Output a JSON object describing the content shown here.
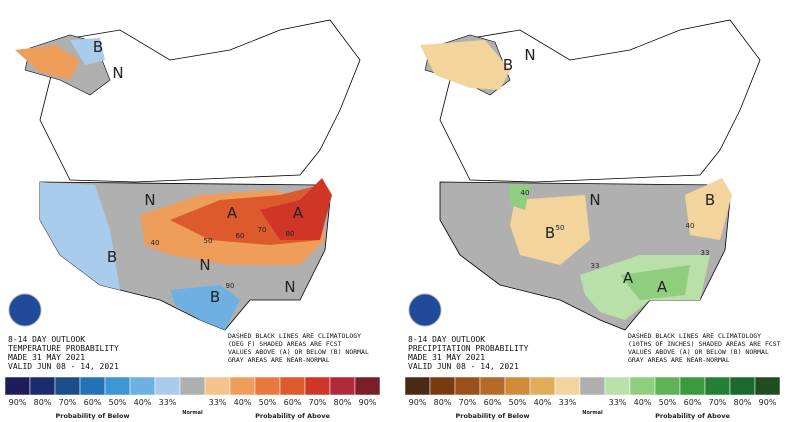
{
  "panels": [
    {
      "title_lines": [
        "8-14 DAY OUTLOOK",
        "TEMPERATURE PROBABILITY",
        "MADE 31 MAY 2021",
        "VALID JUN 08 - 14, 2021"
      ],
      "note_lines": [
        "DASHED BLACK LINES ARE CLIMATOLOGY",
        "(DEG F) SHADED AREAS ARE FCST",
        "VALUES ABOVE (A) OR BELOW (B) NORMAL",
        "GRAY AREAS ARE NEAR-NORMAL"
      ],
      "map_labels": [
        "B",
        "N",
        "N",
        "B",
        "A",
        "A",
        "N",
        "N",
        "B",
        "40",
        "50",
        "60",
        "70",
        "80",
        "90"
      ],
      "legend": {
        "below_colors": [
          "#201c5a",
          "#1c2a6e",
          "#1b4f8c",
          "#2472b5",
          "#3d95d4",
          "#6fb0e3",
          "#a9cbec"
        ],
        "normal_color": "#b0b0b0",
        "above_colors": [
          "#f3c58c",
          "#ef9d5a",
          "#e87a3f",
          "#dc5a2b",
          "#cf3627",
          "#b12a3a",
          "#7a1f2a"
        ],
        "below_labels": [
          "90%",
          "80%",
          "70%",
          "60%",
          "50%",
          "40%",
          "33%"
        ],
        "above_labels": [
          "33%",
          "40%",
          "50%",
          "60%",
          "70%",
          "80%",
          "90%"
        ],
        "below_title": "Probability of Below",
        "normal_title": "Normal",
        "above_title": "Probability of Above"
      }
    },
    {
      "title_lines": [
        "8-14 DAY OUTLOOK",
        "PRECIPITATION PROBABILITY",
        "MADE 31 MAY 2021",
        "VALID JUN 08 - 14, 2021"
      ],
      "note_lines": [
        "DASHED BLACK LINES ARE CLIMATOLOGY",
        "(10THS OF INCHES) SHADED AREAS ARE FCST",
        "VALUES ABOVE (A) OR BELOW (B) NORMAL",
        "GRAY AREAS ARE NEAR-NORMAL"
      ],
      "map_labels": [
        "B",
        "N",
        "B",
        "B",
        "A",
        "A",
        "N",
        "40",
        "50",
        "33",
        "40",
        "33"
      ],
      "legend": {
        "below_colors": [
          "#4a2a14",
          "#7a3a10",
          "#9a4e1c",
          "#b56a2a",
          "#d08a3a",
          "#e0ad5a",
          "#f2d49c"
        ],
        "normal_color": "#b0b0b0",
        "above_colors": [
          "#b9e0a8",
          "#8fce7f",
          "#5fb356",
          "#3c9a3e",
          "#257f37",
          "#1a6a2e",
          "#1f4d1f"
        ],
        "below_labels": [
          "90%",
          "80%",
          "70%",
          "60%",
          "50%",
          "40%",
          "33%"
        ],
        "above_labels": [
          "33%",
          "40%",
          "50%",
          "60%",
          "70%",
          "80%",
          "90%"
        ],
        "below_title": "Probability of Below",
        "normal_title": "Normal",
        "above_title": "Probability of Above"
      }
    }
  ]
}
